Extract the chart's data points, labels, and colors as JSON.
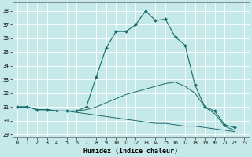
{
  "title": "",
  "xlabel": "Humidex (Indice chaleur)",
  "bg_color": "#c5e8e8",
  "grid_color": "#ffffff",
  "line_color": "#1a6b6b",
  "xlim": [
    -0.5,
    23.5
  ],
  "ylim": [
    28.8,
    38.6
  ],
  "yticks": [
    29,
    30,
    31,
    32,
    33,
    34,
    35,
    36,
    37,
    38
  ],
  "xticks": [
    0,
    1,
    2,
    3,
    4,
    5,
    6,
    7,
    8,
    9,
    10,
    11,
    12,
    13,
    14,
    15,
    16,
    17,
    18,
    19,
    20,
    21,
    22,
    23
  ],
  "main_x": [
    0,
    1,
    2,
    3,
    4,
    5,
    6,
    7,
    8,
    9,
    10,
    11,
    12,
    13,
    14,
    15,
    16,
    17,
    18,
    19,
    20,
    21,
    22
  ],
  "main_y": [
    31.0,
    31.0,
    30.8,
    30.8,
    30.7,
    30.7,
    30.7,
    31.0,
    33.2,
    35.3,
    36.5,
    36.5,
    37.0,
    38.0,
    37.3,
    37.4,
    36.1,
    35.5,
    32.6,
    31.0,
    30.7,
    29.7,
    29.5
  ],
  "line2_x": [
    0,
    1,
    2,
    3,
    4,
    5,
    6,
    7,
    8,
    9,
    10,
    11,
    12,
    13,
    14,
    15,
    16,
    17,
    18,
    19,
    20,
    21,
    22
  ],
  "line2_y": [
    31.0,
    31.0,
    30.8,
    30.8,
    30.7,
    30.7,
    30.7,
    30.8,
    31.0,
    31.3,
    31.6,
    31.9,
    32.1,
    32.3,
    32.5,
    32.7,
    32.8,
    32.5,
    32.0,
    31.0,
    30.5,
    29.6,
    29.3
  ],
  "line3_x": [
    0,
    1,
    2,
    3,
    4,
    5,
    6,
    7,
    8,
    9,
    10,
    11,
    12,
    13,
    14,
    15,
    16,
    17,
    18,
    19,
    20,
    21,
    22
  ],
  "line3_y": [
    31.0,
    31.0,
    30.8,
    30.8,
    30.7,
    30.7,
    30.6,
    30.5,
    30.4,
    30.3,
    30.2,
    30.1,
    30.0,
    29.9,
    29.8,
    29.8,
    29.7,
    29.6,
    29.6,
    29.5,
    29.4,
    29.3,
    29.2
  ]
}
